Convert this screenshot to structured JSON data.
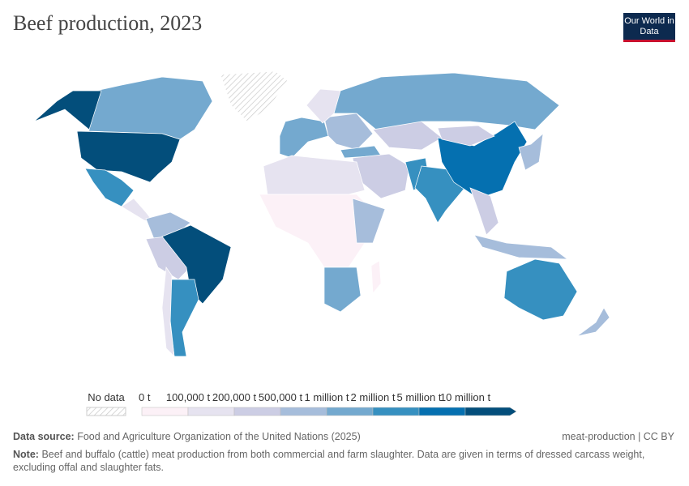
{
  "header": {
    "title": "Beef production, 2023",
    "logo": "Our World in Data"
  },
  "chart_data": {
    "type": "choropleth",
    "title": "Beef production, 2023",
    "unit": "t",
    "legend": {
      "no_data_label": "No data",
      "bins": [
        "0 t",
        "100,000 t",
        "200,000 t",
        "500,000 t",
        "1 million t",
        "2 million t",
        "5 million t",
        "10 million t"
      ],
      "colors": [
        "#fcf1f7",
        "#e6e3f0",
        "#cccde4",
        "#a6bddb",
        "#74a9cf",
        "#3690c0",
        "#0570b0",
        "#034e7b"
      ]
    },
    "regions": [
      {
        "name": "Greenland",
        "bin": -1
      },
      {
        "name": "Canada",
        "bin": 4
      },
      {
        "name": "United States",
        "bin": 7
      },
      {
        "name": "Alaska (US)",
        "bin": 7
      },
      {
        "name": "Mexico",
        "bin": 5
      },
      {
        "name": "Central America",
        "bin": 1
      },
      {
        "name": "Colombia/Venezuela",
        "bin": 3
      },
      {
        "name": "Peru/Bolivia",
        "bin": 2
      },
      {
        "name": "Brazil",
        "bin": 7
      },
      {
        "name": "Argentina",
        "bin": 5
      },
      {
        "name": "Chile",
        "bin": 1
      },
      {
        "name": "Europe West",
        "bin": 4
      },
      {
        "name": "Europe East",
        "bin": 3
      },
      {
        "name": "Scandinavia",
        "bin": 1
      },
      {
        "name": "Russia",
        "bin": 4
      },
      {
        "name": "Kazakhstan",
        "bin": 2
      },
      {
        "name": "Turkey",
        "bin": 4
      },
      {
        "name": "Middle East",
        "bin": 2
      },
      {
        "name": "North Africa",
        "bin": 1
      },
      {
        "name": "Central Africa",
        "bin": 0
      },
      {
        "name": "East Africa",
        "bin": 3
      },
      {
        "name": "South Africa",
        "bin": 4
      },
      {
        "name": "Madagascar",
        "bin": 0
      },
      {
        "name": "Pakistan",
        "bin": 5
      },
      {
        "name": "India",
        "bin": 5
      },
      {
        "name": "China",
        "bin": 6
      },
      {
        "name": "Mongolia",
        "bin": 2
      },
      {
        "name": "Southeast Asia",
        "bin": 2
      },
      {
        "name": "Indonesia",
        "bin": 3
      },
      {
        "name": "Japan/Korea",
        "bin": 3
      },
      {
        "name": "Australia",
        "bin": 5
      },
      {
        "name": "New Zealand",
        "bin": 3
      }
    ]
  },
  "footer": {
    "source_label": "Data source:",
    "source_text": "Food and Agriculture Organization of the United Nations (2025)",
    "license": "meat-production | CC BY",
    "note_label": "Note:",
    "note_text": "Beef and buffalo (cattle) meat production from both commercial and farm slaughter. Data are given in terms of dressed carcass weight, excluding offal and slaughter fats."
  }
}
